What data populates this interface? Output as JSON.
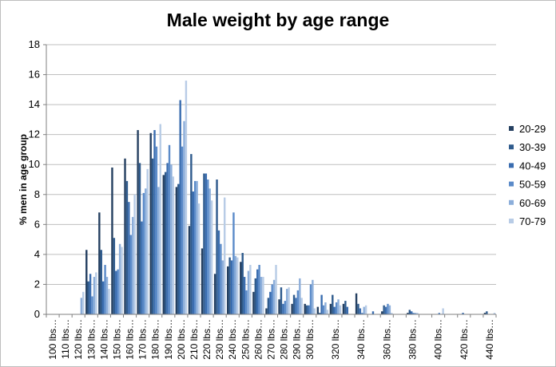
{
  "chart_data": {
    "type": "bar",
    "title": "Male weight by age range",
    "xlabel": "",
    "ylabel": "% men in age group",
    "ylim": [
      0,
      18
    ],
    "yticks": [
      0,
      2,
      4,
      6,
      8,
      10,
      12,
      14,
      16,
      18
    ],
    "grid": true,
    "legend_position": "right",
    "categories": [
      "100 lbs…",
      "110 lbs…",
      "120 lbs…",
      "130 lbs…",
      "140 lbs…",
      "150 lbs…",
      "160 lbs…",
      "170 lbs…",
      "180 lbs…",
      "190 lbs…",
      "200 lbs…",
      "210 lbs…",
      "220 lbs…",
      "230 lbs…",
      "240 lbs…",
      "250 lbs…",
      "260 lbs…",
      "270 lbs…",
      "280 lbs…",
      "290 lbs…",
      "300 lbs…",
      "310 lbs…",
      "320 lbs…",
      "330 lbs…",
      "340 lbs…",
      "350 lbs…",
      "360 lbs…",
      "370 lbs…",
      "380 lbs…",
      "390 lbs…",
      "400 lbs…",
      "410 lbs…",
      "420 lbs…",
      "430 lbs…",
      "440 lbs…"
    ],
    "x_tick_labels": [
      "100 lbs…",
      "110 lbs…",
      "120 lbs…",
      "130 lbs…",
      "140 lbs…",
      "150 lbs…",
      "160 lbs…",
      "170 lbs…",
      "180 lbs…",
      "190 lbs…",
      "200 lbs…",
      "210 lbs…",
      "220 lbs…",
      "230 lbs…",
      "240 lbs…",
      "250 lbs…",
      "260 lbs…",
      "270 lbs…",
      "280 lbs…",
      "290 lbs…",
      "300 lbs…",
      "",
      "320 lbs…",
      "",
      "340 lbs…",
      "",
      "360 lbs…",
      "",
      "380 lbs…",
      "",
      "400 lbs…",
      "",
      "420 lbs…",
      "",
      "440 lbs…"
    ],
    "series": [
      {
        "name": "20-29",
        "color": "#254061",
        "values": [
          0,
          0,
          0,
          4.3,
          6.8,
          9.8,
          10.4,
          12.3,
          12.1,
          9.3,
          8.5,
          5.9,
          4.4,
          2.7,
          3.2,
          3.5,
          1.5,
          0.4,
          1.0,
          0.7,
          0.7,
          0.5,
          0.7,
          0.7,
          1.4,
          0,
          0.2,
          0,
          0.1,
          0,
          0,
          0,
          0,
          0,
          0.1
        ]
      },
      {
        "name": "30-39",
        "color": "#2F5B8D",
        "values": [
          0,
          0,
          0,
          2.2,
          4.3,
          5.1,
          8.9,
          10.1,
          10.4,
          9.5,
          8.7,
          10.7,
          9.4,
          9.0,
          3.8,
          4.1,
          2.4,
          1.1,
          1.8,
          1.3,
          0.6,
          0.1,
          1.3,
          0.9,
          0.7,
          0,
          0.6,
          0,
          0.3,
          0,
          0,
          0,
          0,
          0,
          0.2
        ]
      },
      {
        "name": "40-49",
        "color": "#3A6DB0",
        "values": [
          0,
          0,
          0,
          2.7,
          2.2,
          2.9,
          7.5,
          6.2,
          12.3,
          10.1,
          14.3,
          8.2,
          9.4,
          5.6,
          3.6,
          2.5,
          3.0,
          1.5,
          0.7,
          1.1,
          0.6,
          1.3,
          0.5,
          0.5,
          0.4,
          0.2,
          0.5,
          0,
          0.2,
          0,
          0,
          0,
          0.1,
          0,
          0
        ]
      },
      {
        "name": "50-59",
        "color": "#5B8BC9",
        "values": [
          0,
          0,
          0,
          1.2,
          3.3,
          3.0,
          5.3,
          8.1,
          11.2,
          11.3,
          11.2,
          8.9,
          9.0,
          4.7,
          6.8,
          1.6,
          3.3,
          2.0,
          0.9,
          1.6,
          2.0,
          0.6,
          0.8,
          0,
          0.1,
          0,
          0.7,
          0,
          0.1,
          0,
          0.1,
          0,
          0,
          0,
          0
        ]
      },
      {
        "name": "60-69",
        "color": "#8CAEDA",
        "values": [
          0,
          0,
          1.1,
          2.5,
          2.5,
          4.7,
          6.5,
          8.4,
          8.5,
          10.0,
          12.9,
          8.9,
          8.4,
          3.6,
          3.9,
          2.9,
          2.5,
          2.3,
          1.7,
          2.4,
          2.3,
          0.8,
          1.0,
          0,
          0.5,
          0,
          0.6,
          0,
          0.1,
          0,
          0,
          0,
          0,
          0,
          0
        ]
      },
      {
        "name": "70-79",
        "color": "#B8CCE6",
        "values": [
          0,
          0,
          1.5,
          2.8,
          1.7,
          4.5,
          8.0,
          9.7,
          12.7,
          9.2,
          15.6,
          7.4,
          7.6,
          7.8,
          3.8,
          3.3,
          2.5,
          3.3,
          1.8,
          1.1,
          0.4,
          0.3,
          0.6,
          0,
          0.6,
          0,
          0.1,
          0,
          0.1,
          0,
          0.4,
          0,
          0,
          0,
          0.1
        ]
      }
    ]
  }
}
